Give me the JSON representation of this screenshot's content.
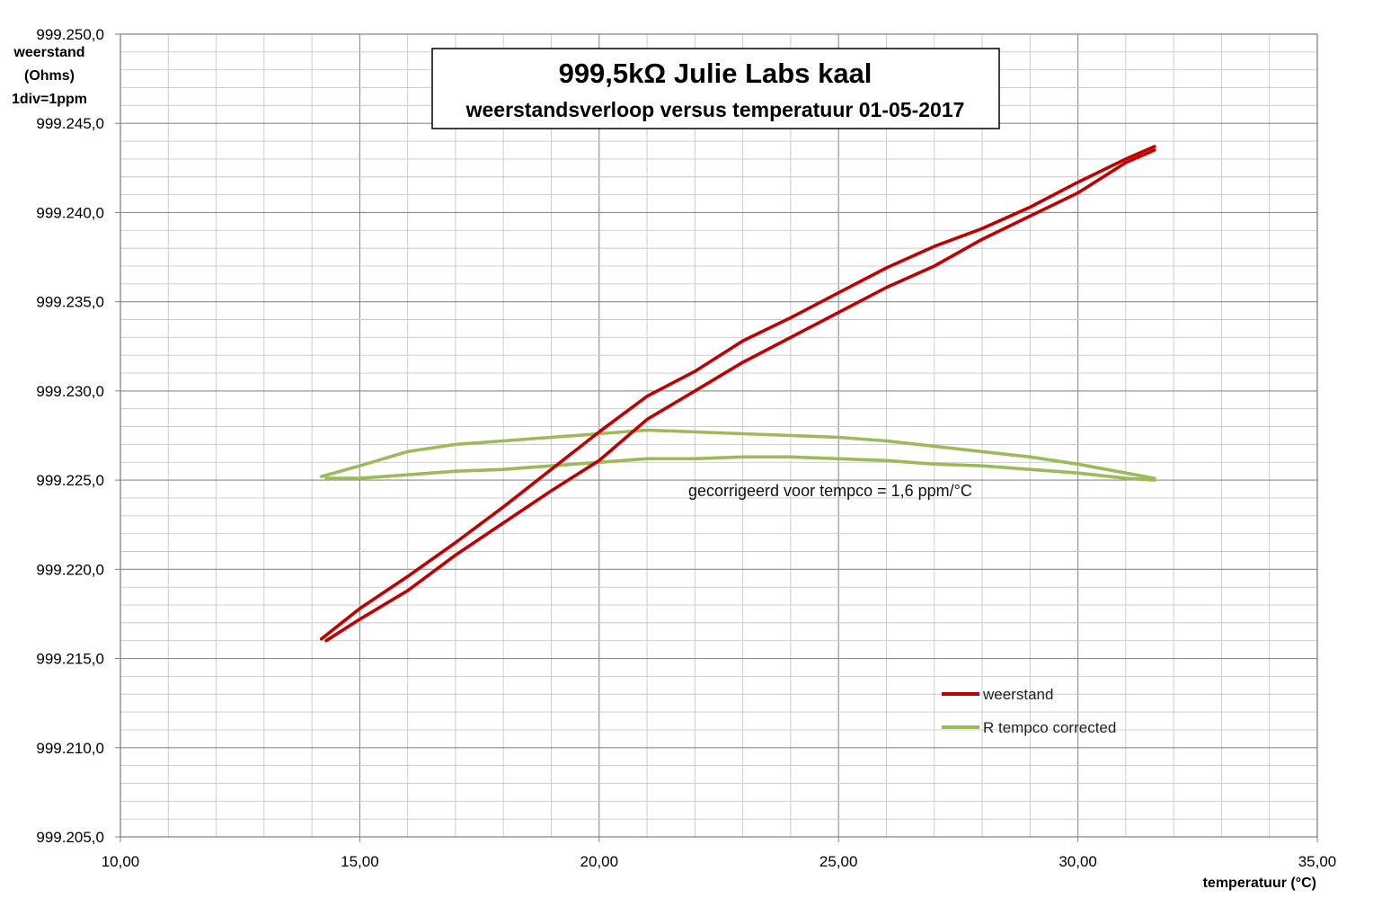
{
  "chart_data": {
    "type": "line",
    "title": "999,5kΩ  Julie Labs  kaal",
    "subtitle": "weerstandsverloop versus temperatuur 01-05-2017",
    "xlabel": "temperatuur (°C)",
    "ylabel_lines": [
      "weerstand",
      "(Ohms)",
      "1div=1ppm"
    ],
    "xlim": [
      10,
      35
    ],
    "ylim": [
      999.205,
      999.25
    ],
    "x_ticks": [
      "10,00",
      "15,00",
      "20,00",
      "25,00",
      "30,00",
      "35,00"
    ],
    "y_ticks": [
      "999.250,0",
      "999.245,0",
      "999.240,0",
      "999.235,0",
      "999.230,0",
      "999.225,0",
      "999.220,0",
      "999.215,0",
      "999.210,0",
      "999.205,0"
    ],
    "grid": true,
    "minor_x_step": 1,
    "minor_y_step": 0.001,
    "legend_position": "bottom-right",
    "annotation": "gecorrigeerd voor tempco = 1,6 ppm/°C",
    "series": [
      {
        "name": "weerstand",
        "color": "#c00000",
        "segments": [
          [
            [
              14.2,
              999.2161
            ],
            [
              15.0,
              999.2178
            ],
            [
              16.0,
              999.2196
            ],
            [
              17.0,
              999.2215
            ],
            [
              18.0,
              999.2235
            ],
            [
              19.0,
              999.2256
            ],
            [
              20.0,
              999.2277
            ],
            [
              21.0,
              999.2297
            ],
            [
              22.0,
              999.2311
            ],
            [
              23.0,
              999.2328
            ],
            [
              24.0,
              999.2341
            ],
            [
              25.0,
              999.2355
            ],
            [
              26.0,
              999.2369
            ],
            [
              27.0,
              999.2381
            ],
            [
              28.0,
              999.2391
            ],
            [
              29.0,
              999.2403
            ],
            [
              30.0,
              999.2417
            ],
            [
              31.0,
              999.243
            ],
            [
              31.6,
              999.2437
            ]
          ],
          [
            [
              31.6,
              999.2435
            ],
            [
              31.0,
              999.2428
            ],
            [
              30.0,
              999.2411
            ],
            [
              29.0,
              999.2398
            ],
            [
              28.0,
              999.2385
            ],
            [
              27.0,
              999.237
            ],
            [
              26.0,
              999.2358
            ],
            [
              25.0,
              999.2344
            ],
            [
              24.0,
              999.233
            ],
            [
              23.0,
              999.2316
            ],
            [
              22.0,
              999.23
            ],
            [
              21.0,
              999.2284
            ],
            [
              20.0,
              999.2261
            ],
            [
              19.0,
              999.2244
            ],
            [
              18.0,
              999.2226
            ],
            [
              17.0,
              999.2208
            ],
            [
              16.0,
              999.2188
            ],
            [
              15.0,
              999.2172
            ],
            [
              14.3,
              999.216
            ]
          ]
        ]
      },
      {
        "name": "R tempco  corrected",
        "color": "#9bbb59",
        "segments": [
          [
            [
              14.2,
              999.2252
            ],
            [
              15.0,
              999.2258
            ],
            [
              16.0,
              999.2266
            ],
            [
              17.0,
              999.227
            ],
            [
              18.0,
              999.2272
            ],
            [
              19.0,
              999.2274
            ],
            [
              20.0,
              999.2276
            ],
            [
              21.0,
              999.2278
            ],
            [
              22.0,
              999.2277
            ],
            [
              23.0,
              999.2276
            ],
            [
              24.0,
              999.2275
            ],
            [
              25.0,
              999.2274
            ],
            [
              26.0,
              999.2272
            ],
            [
              27.0,
              999.2269
            ],
            [
              28.0,
              999.2266
            ],
            [
              29.0,
              999.2263
            ],
            [
              30.0,
              999.2259
            ],
            [
              31.0,
              999.2254
            ],
            [
              31.6,
              999.2251
            ]
          ],
          [
            [
              31.6,
              999.225
            ],
            [
              31.0,
              999.2251
            ],
            [
              30.0,
              999.2254
            ],
            [
              29.0,
              999.2256
            ],
            [
              28.0,
              999.2258
            ],
            [
              27.0,
              999.2259
            ],
            [
              26.0,
              999.2261
            ],
            [
              25.0,
              999.2262
            ],
            [
              24.0,
              999.2263
            ],
            [
              23.0,
              999.2263
            ],
            [
              22.0,
              999.2262
            ],
            [
              21.0,
              999.2262
            ],
            [
              20.0,
              999.226
            ],
            [
              19.0,
              999.2258
            ],
            [
              18.0,
              999.2256
            ],
            [
              17.0,
              999.2255
            ],
            [
              16.0,
              999.2253
            ],
            [
              15.0,
              999.2251
            ],
            [
              14.3,
              999.2251
            ]
          ]
        ]
      }
    ]
  }
}
